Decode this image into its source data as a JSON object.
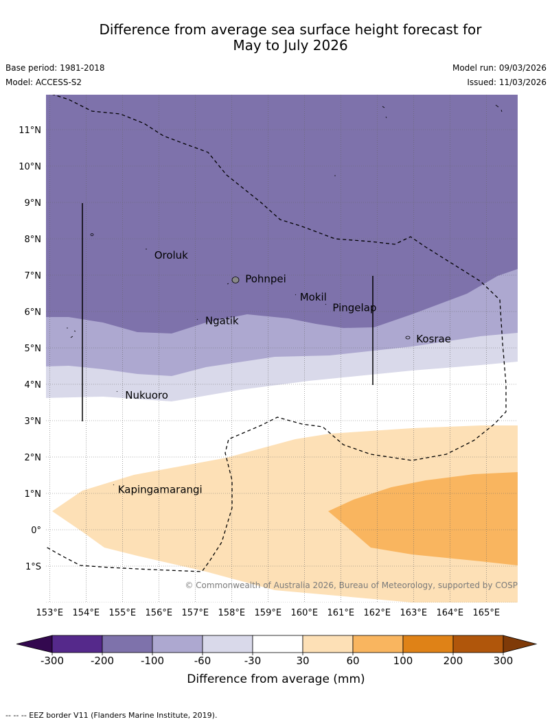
{
  "title": {
    "line1": "Difference from average sea surface height forecast for",
    "line2": "May to July 2026"
  },
  "meta": {
    "base_period": "Base period: 1981-2018",
    "model": "Model: ACCESS-S2",
    "model_run": "Model run: 09/03/2026",
    "issued": "Issued: 11/03/2026"
  },
  "map": {
    "lon_labels": [
      "153°E",
      "154°E",
      "155°E",
      "156°E",
      "157°E",
      "158°E",
      "159°E",
      "160°E",
      "161°E",
      "162°E",
      "163°E",
      "164°E",
      "165°E"
    ],
    "lat_labels": [
      "11°N",
      "10°N",
      "9°N",
      "8°N",
      "7°N",
      "6°N",
      "5°N",
      "4°N",
      "3°N",
      "2°N",
      "1°N",
      "0°",
      "1°S"
    ],
    "places": [
      {
        "name": "Oroluk",
        "lon": 155.8,
        "lat": 7.55
      },
      {
        "name": "Pohnpei",
        "lon": 158.3,
        "lat": 6.9
      },
      {
        "name": "Mokil",
        "lon": 159.8,
        "lat": 6.4
      },
      {
        "name": "Pingelap",
        "lon": 160.7,
        "lat": 6.1
      },
      {
        "name": "Ngatik",
        "lon": 157.2,
        "lat": 5.75
      },
      {
        "name": "Kosrae",
        "lon": 163.0,
        "lat": 5.25
      },
      {
        "name": "Nukuoro",
        "lon": 155.0,
        "lat": 3.7
      },
      {
        "name": "Kapingamarangi",
        "lon": 154.8,
        "lat": 1.1
      }
    ],
    "copyright": "© Commonwealth of Australia 2026, Bureau of Meteorology, supported by COSPPac"
  },
  "colorbar": {
    "ticks": [
      "-300",
      "-200",
      "-100",
      "-60",
      "-30",
      "30",
      "60",
      "100",
      "200",
      "300"
    ],
    "colors": [
      "#55298b",
      "#7e72ab",
      "#ada8d0",
      "#d9d9ea",
      "#ffffff",
      "#fde0b6",
      "#f9b55f",
      "#df8217",
      "#b0560b"
    ],
    "under_color": "#33084f",
    "over_color": "#7f3a08",
    "label": "Difference from average (mm)"
  },
  "legend_note": "--  --  -- EEZ border V11 (Flanders Marine Institute, 2019)."
}
